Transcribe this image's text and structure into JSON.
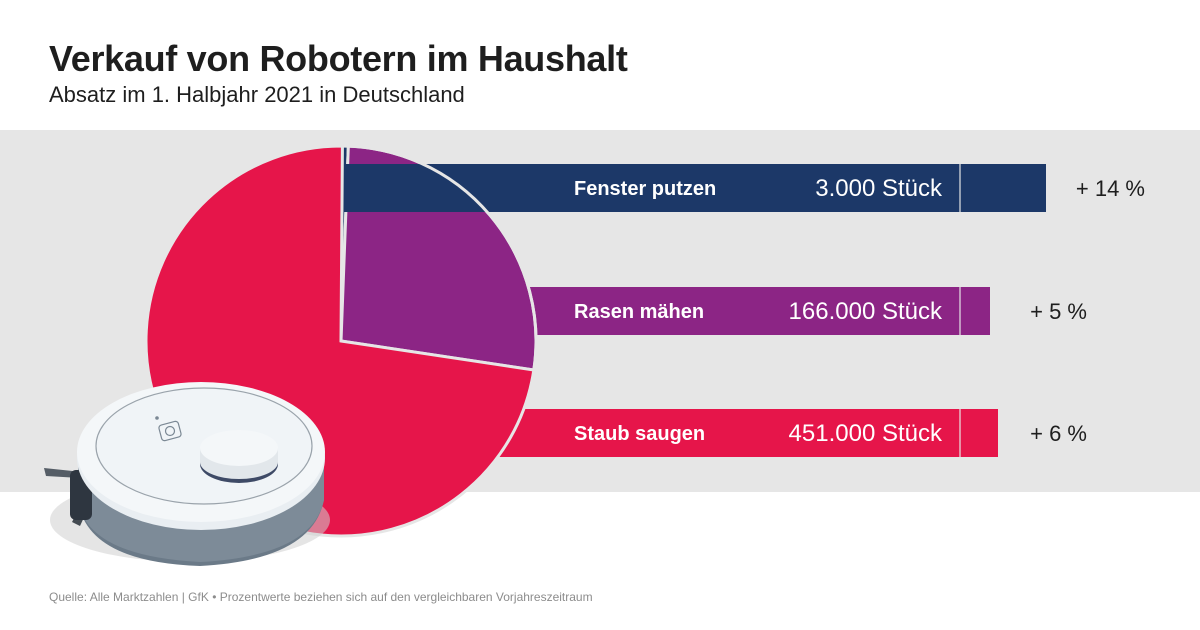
{
  "header": {
    "title": "Verkauf von Robotern im Haushalt",
    "subtitle": "Absatz im 1. Halbjahr 2021 in Deutschland"
  },
  "footer": {
    "source": "Quelle: Alle Marktzahlen | GfK • Prozentwerte beziehen sich auf den vergleichbaren Vorjahreszeitraum"
  },
  "illustration": {
    "icon": "robot-vacuum-icon"
  },
  "colors": {
    "fenster": "#1c3868",
    "rasen": "#8c2585",
    "staub": "#e6154a",
    "band": "#e6e6e6"
  },
  "chart_data": {
    "type": "pie",
    "title": "Verkauf von Robotern im Haushalt",
    "subtitle": "Absatz im 1. Halbjahr 2021 in Deutschland",
    "unit": "Stück",
    "categories": [
      "Fenster putzen",
      "Rasen mähen",
      "Staub saugen"
    ],
    "values": [
      3000,
      166000,
      451000
    ],
    "value_labels": [
      "3.000 Stück",
      "166.000 Stück",
      "451.000 Stück"
    ],
    "change_vs_prior_year": [
      "+ 14 %",
      "+ 5 %",
      "+ 6 %"
    ],
    "change_values_percent": [
      14,
      5,
      6
    ],
    "colors": [
      "#1c3868",
      "#8c2585",
      "#e6154a"
    ],
    "legend": "right (bars)"
  }
}
